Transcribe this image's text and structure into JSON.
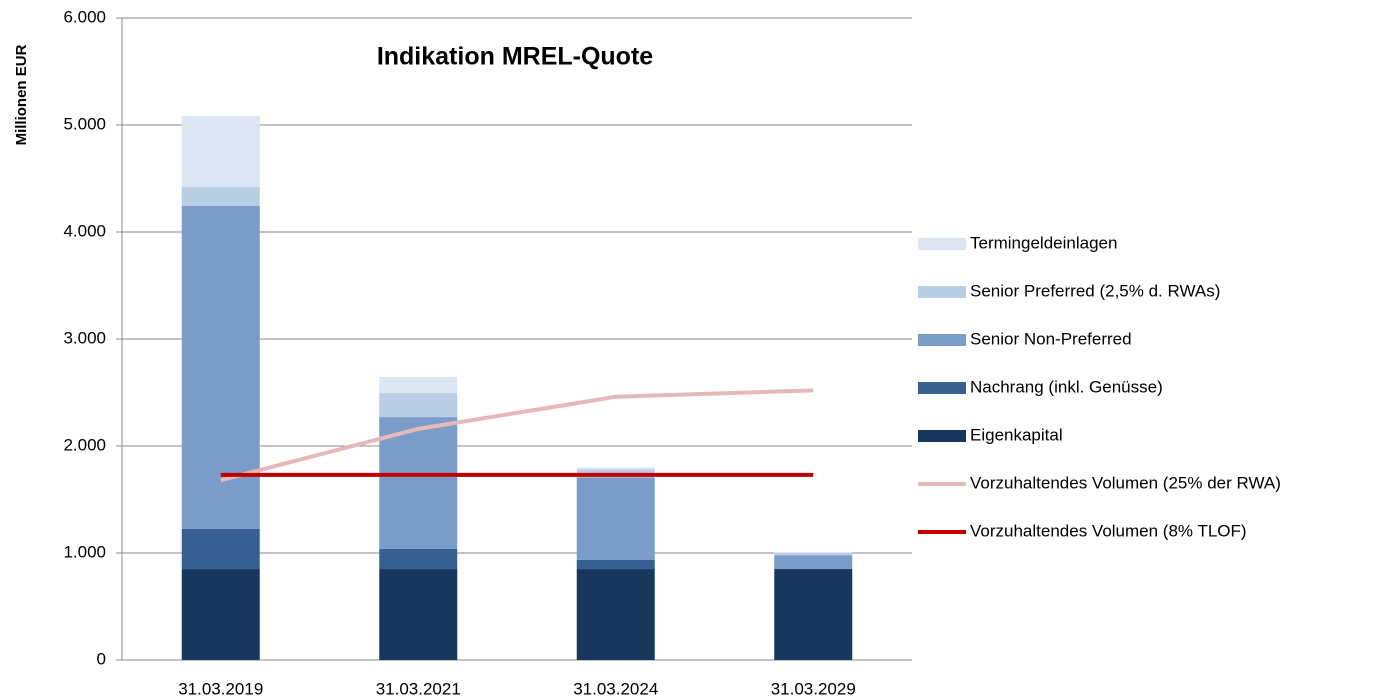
{
  "chart_data": {
    "type": "bar",
    "stacked": true,
    "title": "Indikation MREL-Quote",
    "y_label": "Millionen EUR",
    "categories": [
      "31.03.2019",
      "31.03.2021",
      "31.03.2024",
      "31.03.2029"
    ],
    "series": [
      {
        "name": "Eigenkapital",
        "color": "#17375e",
        "values": [
          850,
          850,
          850,
          850
        ]
      },
      {
        "name": "Nachrang (inkl. Genüsse)",
        "color": "#366092",
        "values": [
          375,
          190,
          85,
          0
        ]
      },
      {
        "name": "Senior Non-Preferred",
        "color": "#7a9cc9",
        "values": [
          3020,
          1230,
          770,
          130
        ]
      },
      {
        "name": "Senior Preferred (2,5% d. RWAs)",
        "color": "#b9cde5",
        "values": [
          175,
          225,
          75,
          20
        ]
      },
      {
        "name": "Termingeldeinlagen",
        "color": "#dce6f2",
        "values": [
          665,
          150,
          20,
          10
        ]
      },
      {
        "name": "Vorzuhaltendes Volumen (25% der RWA)",
        "color": "#e6b9b8",
        "type": "line",
        "values": [
          1680,
          2160,
          2460,
          2520
        ]
      },
      {
        "name": "Vorzuhaltendes Volumen (8% TLOF)",
        "color": "#c00000",
        "type": "line",
        "values": [
          1730,
          1730,
          1730,
          1730
        ]
      }
    ],
    "ylim": [
      0,
      6000
    ],
    "yticks": [
      0,
      {
        "value": 1000,
        "label": "1.000"
      },
      {
        "value": 2000,
        "label": "2.000"
      },
      {
        "value": 3000,
        "label": "3.000"
      },
      {
        "value": 4000,
        "label": "4.000"
      },
      {
        "value": 5000,
        "label": "5.000"
      },
      {
        "value": 6000,
        "label": "6.000"
      }
    ],
    "grid": true,
    "legend": "right"
  }
}
